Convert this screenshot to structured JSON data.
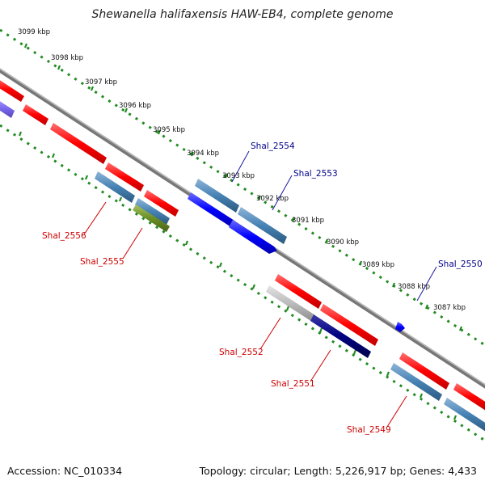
{
  "title": "Shewanella halifaxensis HAW-EB4, complete genome",
  "footer": {
    "accession": "Accession: NC_010334",
    "topology": "Topology: circular; Length: 5,226,917 bp; Genes: 4,433"
  },
  "kbp_ticks": [
    "3099 kbp",
    "3098 kbp",
    "3097 kbp",
    "3096 kbp",
    "3095 kbp",
    "3094 kbp",
    "3093 kbp",
    "3092 kbp",
    "3091 kbp",
    "3090 kbp",
    "3089 kbp",
    "3088 kbp",
    "3087 kbp"
  ],
  "gene_labels": {
    "shal_2554": "Shal_2554",
    "shal_2553": "Shal_2553",
    "shal_2550": "Shal_2550",
    "shal_2556": "Shal_2556",
    "shal_2555": "Shal_2555",
    "shal_2552": "Shal_2552",
    "shal_2551": "Shal_2551",
    "shal_2549": "Shal_2549"
  },
  "colors": {
    "backbone": "#888888",
    "forward_red": "#ff0000",
    "steel_blue": "#4682b4",
    "blue": "#0000ff",
    "navy": "#000080",
    "olive": "#6b8e23",
    "gray": "#bbbbbb",
    "slate": "#7b68ee",
    "tick_green": "#228b22"
  }
}
